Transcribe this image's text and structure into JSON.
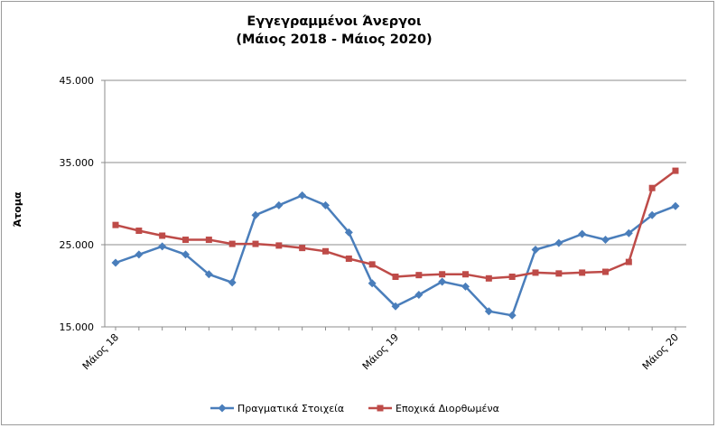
{
  "chart_data": {
    "type": "line",
    "title_line1": "Εγγεγραμμένοι Άνεργοι",
    "title_line2": "(Μάιος 2018 - Μάιος 2020)",
    "ylabel": "Άτομα",
    "xlabel": "",
    "ylim": [
      15000,
      45000
    ],
    "yticks": [
      15000,
      25000,
      35000,
      45000
    ],
    "ytick_labels": [
      "15.000",
      "25.000",
      "35.000",
      "45.000"
    ],
    "xtick_labels": [
      {
        "index": 0,
        "label": "Μάιος 18"
      },
      {
        "index": 12,
        "label": "Μάιος 19"
      },
      {
        "index": 24,
        "label": "Μάιος 20"
      }
    ],
    "grid": "horizontal",
    "legend_position": "bottom",
    "series": [
      {
        "name": "Πραγματικά Στοιχεία",
        "color": "#4a7ebb",
        "marker": "diamond",
        "values": [
          22800,
          23800,
          24800,
          23800,
          21400,
          20400,
          28600,
          29800,
          31000,
          29800,
          26500,
          20300,
          17500,
          18900,
          20500,
          19900,
          16900,
          16400,
          24400,
          25200,
          26300,
          25600,
          26400,
          28600,
          29700
        ]
      },
      {
        "name": "Εποχικά Διορθωμένα",
        "color": "#be4b48",
        "marker": "square",
        "values": [
          27400,
          26700,
          26100,
          25600,
          25600,
          25100,
          25100,
          24900,
          24600,
          24200,
          23300,
          22600,
          21100,
          21300,
          21400,
          21400,
          20900,
          21100,
          21600,
          21500,
          21600,
          21700,
          22900,
          31900,
          34000
        ]
      }
    ]
  }
}
